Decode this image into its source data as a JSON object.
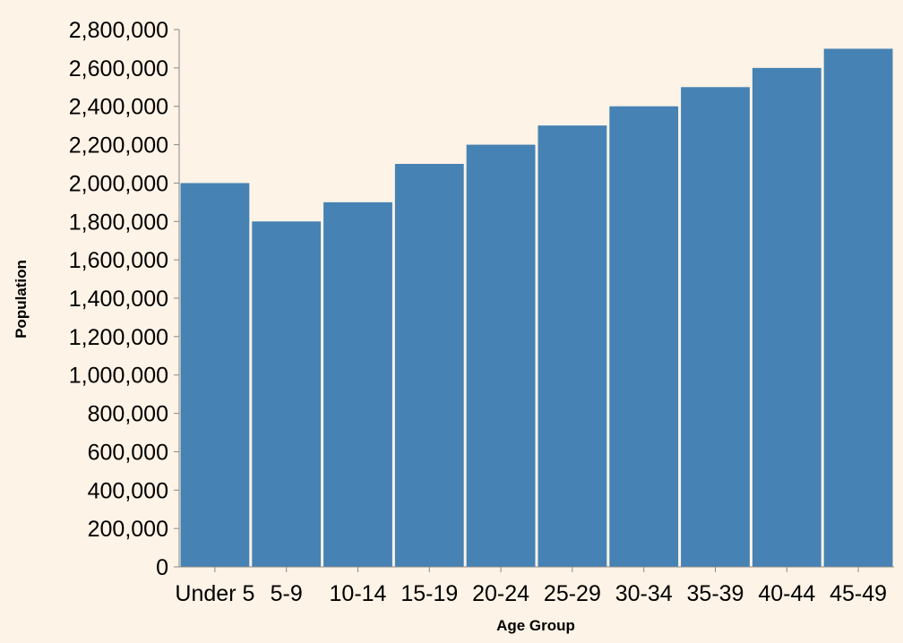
{
  "chart_data": {
    "type": "bar",
    "categories": [
      "Under 5",
      "5-9",
      "10-14",
      "15-19",
      "20-24",
      "25-29",
      "30-34",
      "35-39",
      "40-44",
      "45-49"
    ],
    "values": [
      2000000,
      1800000,
      1900000,
      2100000,
      2200000,
      2300000,
      2400000,
      2500000,
      2600000,
      2700000
    ],
    "xlabel": "Age Group",
    "ylabel": "Population",
    "ylim": [
      0,
      2800000
    ],
    "yticks": [
      0,
      200000,
      400000,
      600000,
      800000,
      1000000,
      1200000,
      1400000,
      1600000,
      1800000,
      2000000,
      2200000,
      2400000,
      2600000,
      2800000
    ],
    "grid": false,
    "colors": {
      "bar": "#4682b4",
      "background": "#fdf3e6",
      "axis": "#888888"
    }
  }
}
